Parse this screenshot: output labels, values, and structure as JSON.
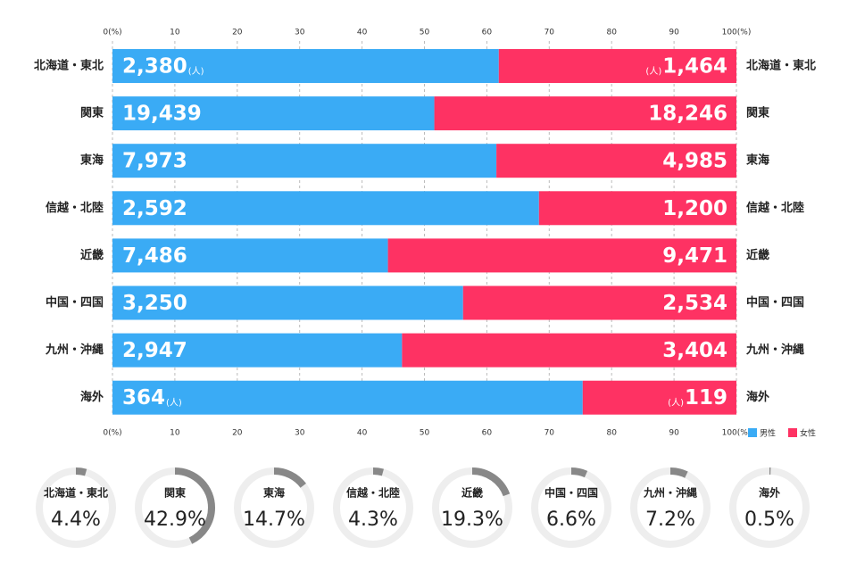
{
  "chart_data": [
    {
      "type": "bar_percent",
      "categories": [
        "北海道・東北",
        "関東",
        "東海",
        "信越・北陸",
        "近畿",
        "中国・四国",
        "九州・沖縄",
        "海外"
      ],
      "series": [
        {
          "name": "男性",
          "color": "#3aabf5",
          "values": [
            2380,
            19439,
            7973,
            2592,
            7486,
            3250,
            2947,
            364
          ],
          "value_labels": [
            "2,380",
            "19,439",
            "7,973",
            "2,592",
            "7,486",
            "3,250",
            "2,947",
            "364"
          ]
        },
        {
          "name": "女性",
          "color": "#fe3263",
          "values": [
            1464,
            18246,
            4985,
            1200,
            9471,
            2534,
            3404,
            119
          ],
          "value_labels": [
            "1,464",
            "18,246",
            "4,985",
            "1,200",
            "9,471",
            "2,534",
            "3,404",
            "119"
          ]
        }
      ],
      "unit_label": "(人)",
      "xlim": [
        0,
        100
      ],
      "xticks": [
        {
          "value": 0,
          "label": "0(%)"
        },
        10,
        20,
        30,
        40,
        50,
        60,
        70,
        80,
        90,
        {
          "value": 100,
          "label": "100(%)"
        }
      ],
      "grid": true,
      "legend": "bottom-right"
    },
    {
      "type": "donut",
      "categories": [
        "北海道・東北",
        "関東",
        "東海",
        "信越・北陸",
        "近畿",
        "中国・四国",
        "九州・沖縄",
        "海外"
      ],
      "values": [
        4.4,
        42.9,
        14.7,
        4.3,
        19.3,
        6.6,
        7.2,
        0.5
      ],
      "value_labels": [
        "4.4%",
        "42.9%",
        "14.7%",
        "4.3%",
        "19.3%",
        "6.6%",
        "7.2%",
        "0.5%"
      ],
      "color": "#888888",
      "track_color": "#eeeeee"
    }
  ]
}
